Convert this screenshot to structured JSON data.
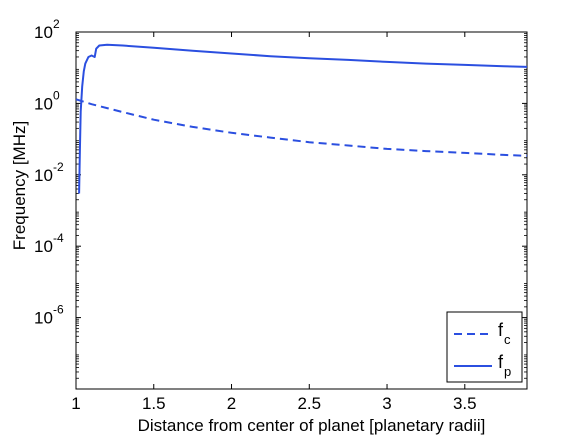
{
  "chart_data": {
    "type": "line",
    "xlabel": "Distance from center of planet [planetary radii]",
    "ylabel": "Frequency [MHz]",
    "xlim": [
      1,
      3.9
    ],
    "ylim_log10": [
      -8,
      2
    ],
    "y_scale": "log",
    "x_ticks": [
      "1",
      "1.5",
      "2",
      "2.5",
      "3",
      "3.5"
    ],
    "y_ticks": [
      {
        "base": "10",
        "exp": "2"
      },
      {
        "base": "10",
        "exp": "0"
      },
      {
        "base": "10",
        "exp": "-2"
      },
      {
        "base": "10",
        "exp": "-4"
      },
      {
        "base": "10",
        "exp": "-6"
      }
    ],
    "legend_position": "bottom-right",
    "series": [
      {
        "name": "f_c",
        "label_main": "f",
        "label_sub": "c",
        "style": "dashed",
        "color": "#2b4fe0",
        "x": [
          1.0,
          1.1,
          1.2,
          1.3,
          1.5,
          1.75,
          2.0,
          2.25,
          2.5,
          2.75,
          3.0,
          3.25,
          3.5,
          3.75,
          3.9
        ],
        "y": [
          1.3,
          0.95,
          0.74,
          0.57,
          0.35,
          0.22,
          0.15,
          0.11,
          0.082,
          0.066,
          0.053,
          0.046,
          0.041,
          0.036,
          0.034
        ]
      },
      {
        "name": "f_p",
        "label_main": "f",
        "label_sub": "p",
        "style": "solid",
        "color": "#2b4fe0",
        "x": [
          1.02,
          1.025,
          1.03,
          1.04,
          1.05,
          1.06,
          1.08,
          1.1,
          1.12,
          1.13,
          1.15,
          1.2,
          1.3,
          1.5,
          1.75,
          2.0,
          2.25,
          2.5,
          2.75,
          3.0,
          3.25,
          3.5,
          3.75,
          3.9
        ],
        "y": [
          0.003,
          0.05,
          0.6,
          3.0,
          8.0,
          13.0,
          20.0,
          22.0,
          20.0,
          34.0,
          42.0,
          44.0,
          42.0,
          36.0,
          30.0,
          25.0,
          21.0,
          18.5,
          16.5,
          14.5,
          13.0,
          12.0,
          11.0,
          10.5
        ]
      }
    ]
  }
}
